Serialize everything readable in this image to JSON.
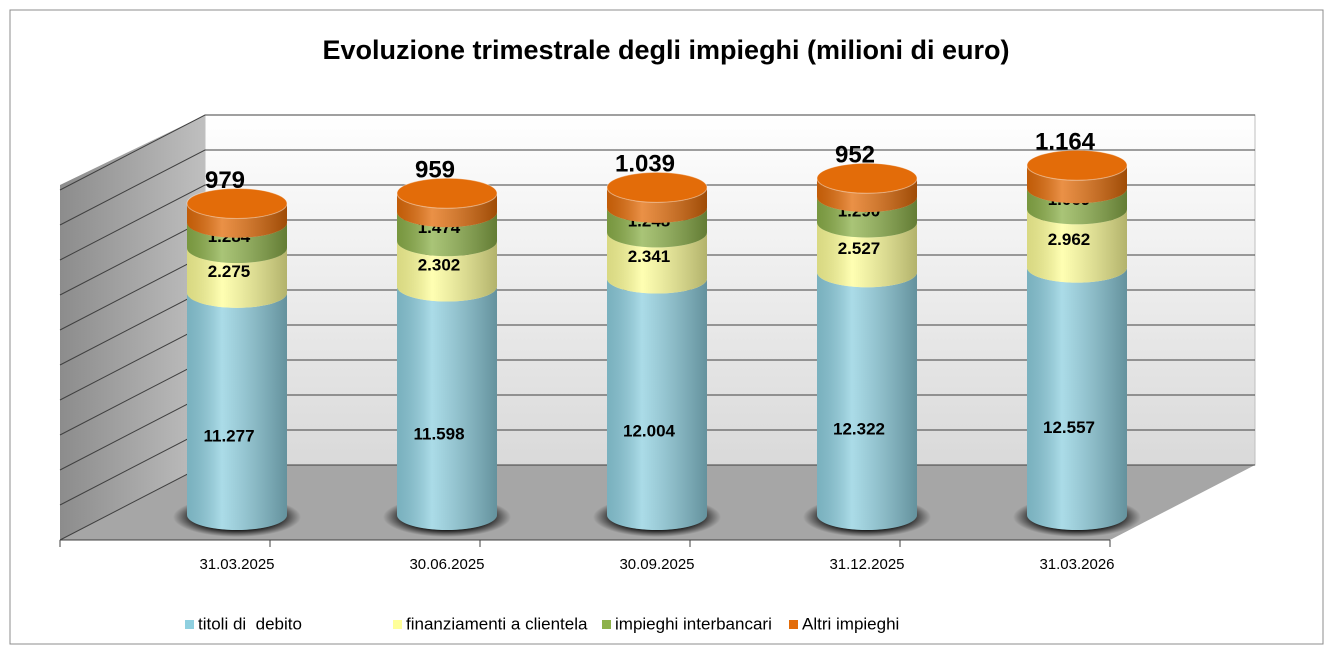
{
  "chart_data": {
    "type": "bar3d",
    "title": "Evoluzione trimestrale degli impieghi (milioni di euro)",
    "categories": [
      "31.03.2025",
      "30.06.2025",
      "30.09.2025",
      "31.12.2025",
      "31.03.2026"
    ],
    "stacked": true,
    "series": [
      {
        "name": "titoli di  debito",
        "color": "#8fd0e0",
        "values": [
          11277,
          11598,
          12004,
          12322,
          12557
        ],
        "value_labels": [
          "11.277",
          "11.598",
          "12.004",
          "12.322",
          "12.557"
        ]
      },
      {
        "name": "finanziamenti a clientela",
        "color": "#ffff99",
        "values": [
          2275,
          2302,
          2341,
          2527,
          2962
        ],
        "value_labels": [
          "2.275",
          "2.302",
          "2.341",
          "2.527",
          "2.962"
        ]
      },
      {
        "name": "impieghi interbancari",
        "color": "#8db14a",
        "values": [
          1284,
          1474,
          1248,
          1290,
          1069
        ],
        "value_labels": [
          "1.284",
          "1.474",
          "1.248",
          "1.290",
          "1.069"
        ]
      },
      {
        "name": "Altri impieghi",
        "color": "#e36c09",
        "values": [
          979,
          959,
          1039,
          952,
          1164
        ],
        "value_labels": [
          "979",
          "959",
          "1.039",
          "952",
          "1.164"
        ]
      }
    ],
    "ylim": [
      0,
      20000
    ],
    "yticks": [
      0,
      2000,
      4000,
      6000,
      8000,
      10000,
      12000,
      14000,
      16000,
      18000,
      20000
    ],
    "grid": true,
    "legend": "bottom"
  }
}
